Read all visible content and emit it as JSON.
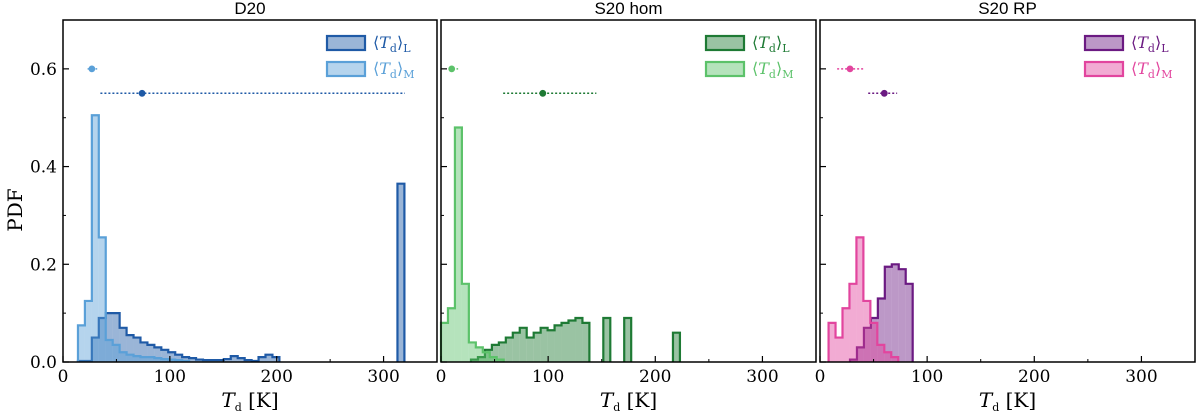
{
  "ylabel": "PDF",
  "colors": {
    "d20_L": "#1f5aa6",
    "d20_M": "#5aa0d8",
    "hom_L": "#1e7a34",
    "hom_M": "#5cc26a",
    "rp_L": "#6b1a82",
    "rp_M": "#e2459e"
  },
  "chart_data": [
    {
      "type": "bar",
      "title": "D20",
      "xlabel": "T_d [K]",
      "xticks": [
        "0",
        "100",
        "200",
        "300"
      ],
      "yticks": [
        "0.0",
        "0.2",
        "0.4",
        "0.6"
      ],
      "xlim": [
        0,
        350
      ],
      "ylim": [
        0,
        0.7
      ],
      "binwidth": 6.5,
      "series": [
        {
          "name": "⟨T_d⟩_L",
          "key": "d20_L",
          "start": 14,
          "values": [
            0.002,
            0.002,
            0.05,
            0.09,
            0.1,
            0.1,
            0.07,
            0.055,
            0.05,
            0.04,
            0.035,
            0.03,
            0.025,
            0.02,
            0.015,
            0.01,
            0.008,
            0.005,
            0.004,
            0.004,
            0.004,
            0.006,
            0.012,
            0.008,
            0.004,
            0.002,
            0.01,
            0.015,
            0.01,
            0,
            0,
            0,
            0,
            0,
            0,
            0,
            0,
            0,
            0,
            0,
            0,
            0,
            0,
            0,
            0,
            0,
            0.365
          ],
          "point": 74,
          "range": [
            35,
            320
          ],
          "point_y": 0.55
        },
        {
          "name": "⟨T_d⟩_M",
          "key": "d20_M",
          "start": 14,
          "values": [
            0.075,
            0.125,
            0.505,
            0.255,
            0.045,
            0.035,
            0.02,
            0.015,
            0.012,
            0.01,
            0.01,
            0.008,
            0.006,
            0.005,
            0.004,
            0.002
          ],
          "point": 27,
          "range": [
            23,
            32
          ],
          "point_y": 0.6
        }
      ]
    },
    {
      "type": "bar",
      "title": "S20 hom",
      "xlabel": "T_d [K]",
      "xticks": [
        "0",
        "100",
        "200",
        "300"
      ],
      "yticks": [],
      "xlim": [
        0,
        350
      ],
      "ylim": [
        0,
        0.7
      ],
      "binwidth": 6.5,
      "series": [
        {
          "name": "⟨T_d⟩_L",
          "key": "hom_L",
          "start": 28,
          "values": [
            0.005,
            0.01,
            0.025,
            0.035,
            0.04,
            0.05,
            0.06,
            0.07,
            0.05,
            0.06,
            0.07,
            0.065,
            0.075,
            0.08,
            0.085,
            0.09,
            0.08,
            0,
            0,
            0.09,
            0,
            0,
            0.09,
            0,
            0,
            0,
            0,
            0,
            0,
            0.06
          ],
          "point": 95,
          "range": [
            58,
            145
          ],
          "point_y": 0.55
        },
        {
          "name": "⟨T_d⟩_M",
          "key": "hom_M",
          "start": 0,
          "values": [
            0.08,
            0.11,
            0.48,
            0.16,
            0.04,
            0.03,
            0.02,
            0.01,
            0.005
          ],
          "point": 10,
          "range": [
            7,
            16
          ],
          "point_y": 0.6
        }
      ]
    },
    {
      "type": "bar",
      "title": "S20 RP",
      "xlabel": "T_d [K]",
      "xticks": [
        "0",
        "100",
        "200",
        "300"
      ],
      "yticks": [],
      "xlim": [
        0,
        350
      ],
      "ylim": [
        0,
        0.7
      ],
      "binwidth": 6.5,
      "series": [
        {
          "name": "⟨T_d⟩_L",
          "key": "rp_L",
          "start": 28,
          "values": [
            0.005,
            0.03,
            0.07,
            0.09,
            0.13,
            0.195,
            0.2,
            0.19,
            0.16
          ],
          "point": 60,
          "range": [
            45,
            72
          ],
          "point_y": 0.55
        },
        {
          "name": "⟨T_d⟩_M",
          "key": "rp_M",
          "start": 8,
          "values": [
            0.08,
            0.05,
            0.11,
            0.16,
            0.255,
            0.125,
            0.08,
            0.035,
            0.02,
            0.01
          ],
          "point": 28,
          "range": [
            16,
            42
          ],
          "point_y": 0.6
        }
      ]
    }
  ]
}
